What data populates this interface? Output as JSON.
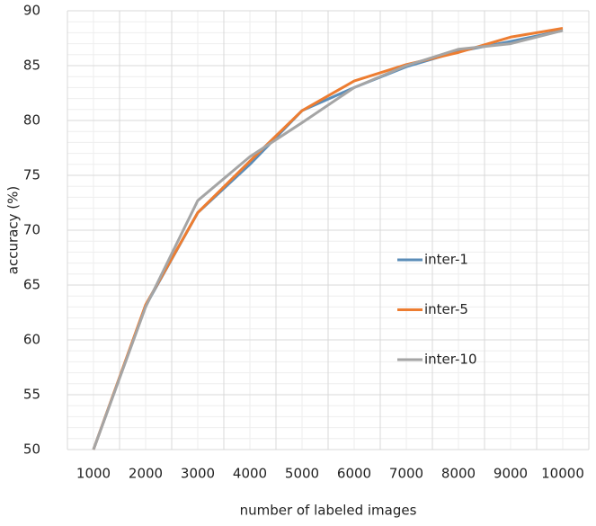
{
  "chart_data": {
    "type": "line",
    "x_label": "number of labeled images",
    "y_label": "accuracy (%)",
    "categories": [
      "1000",
      "2000",
      "3000",
      "4000",
      "5000",
      "6000",
      "7000",
      "8000",
      "9000",
      "10000"
    ],
    "series": [
      {
        "name": "inter-1",
        "color": "#5b8db8",
        "values": [
          50,
          63.1,
          71.6,
          76.0,
          80.9,
          83.0,
          84.9,
          86.3,
          87.2,
          88.2
        ]
      },
      {
        "name": "inter-5",
        "color": "#ed7d31",
        "values": [
          50,
          63.2,
          71.6,
          76.3,
          80.9,
          83.6,
          85.1,
          86.2,
          87.6,
          88.4
        ]
      },
      {
        "name": "inter-10",
        "color": "#a5a5a5",
        "values": [
          50,
          63.0,
          72.7,
          76.7,
          79.8,
          83.0,
          85.0,
          86.5,
          87.0,
          88.2
        ]
      }
    ],
    "ylim": [
      50,
      90
    ],
    "yticks": [
      50,
      55,
      60,
      65,
      70,
      75,
      80,
      85,
      90
    ],
    "grid": true,
    "legend": "right"
  }
}
